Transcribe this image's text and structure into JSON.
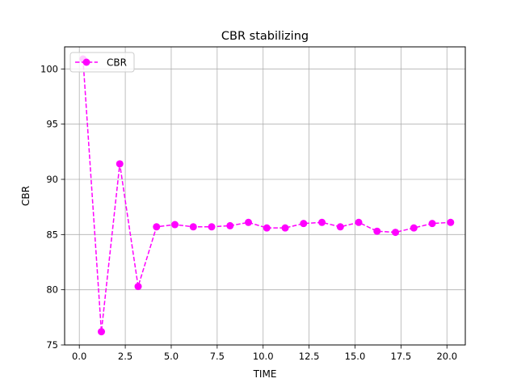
{
  "chart_data": {
    "type": "line",
    "title": "CBR stabilizing",
    "xlabel": "TIME",
    "ylabel": "CBR",
    "xlim": [
      -0.8,
      21.0
    ],
    "ylim": [
      75,
      102
    ],
    "x_ticks": [
      0.0,
      2.5,
      5.0,
      7.5,
      10.0,
      12.5,
      15.0,
      17.5,
      20.0
    ],
    "x_tick_labels": [
      "0.0",
      "2.5",
      "5.0",
      "7.5",
      "10.0",
      "12.5",
      "15.0",
      "17.5",
      "20.0"
    ],
    "y_ticks": [
      75,
      80,
      85,
      90,
      95,
      100
    ],
    "y_tick_labels": [
      "75",
      "80",
      "85",
      "90",
      "95",
      "100"
    ],
    "grid": true,
    "legend_position": "upper-left",
    "series": [
      {
        "name": "CBR",
        "color": "#ff00ff",
        "line_style": "dashed",
        "marker": "circle",
        "x": [
          0.2,
          1.2,
          2.2,
          3.2,
          4.2,
          5.2,
          6.2,
          7.2,
          8.2,
          9.2,
          10.2,
          11.2,
          12.2,
          13.2,
          14.2,
          15.2,
          16.2,
          17.2,
          18.2,
          19.2,
          20.2
        ],
        "values": [
          100.9,
          76.2,
          91.4,
          80.3,
          85.7,
          85.9,
          85.7,
          85.7,
          85.8,
          86.1,
          85.6,
          85.6,
          86.0,
          86.1,
          85.7,
          86.1,
          85.3,
          85.2,
          85.6,
          86.0,
          86.1
        ]
      }
    ]
  }
}
